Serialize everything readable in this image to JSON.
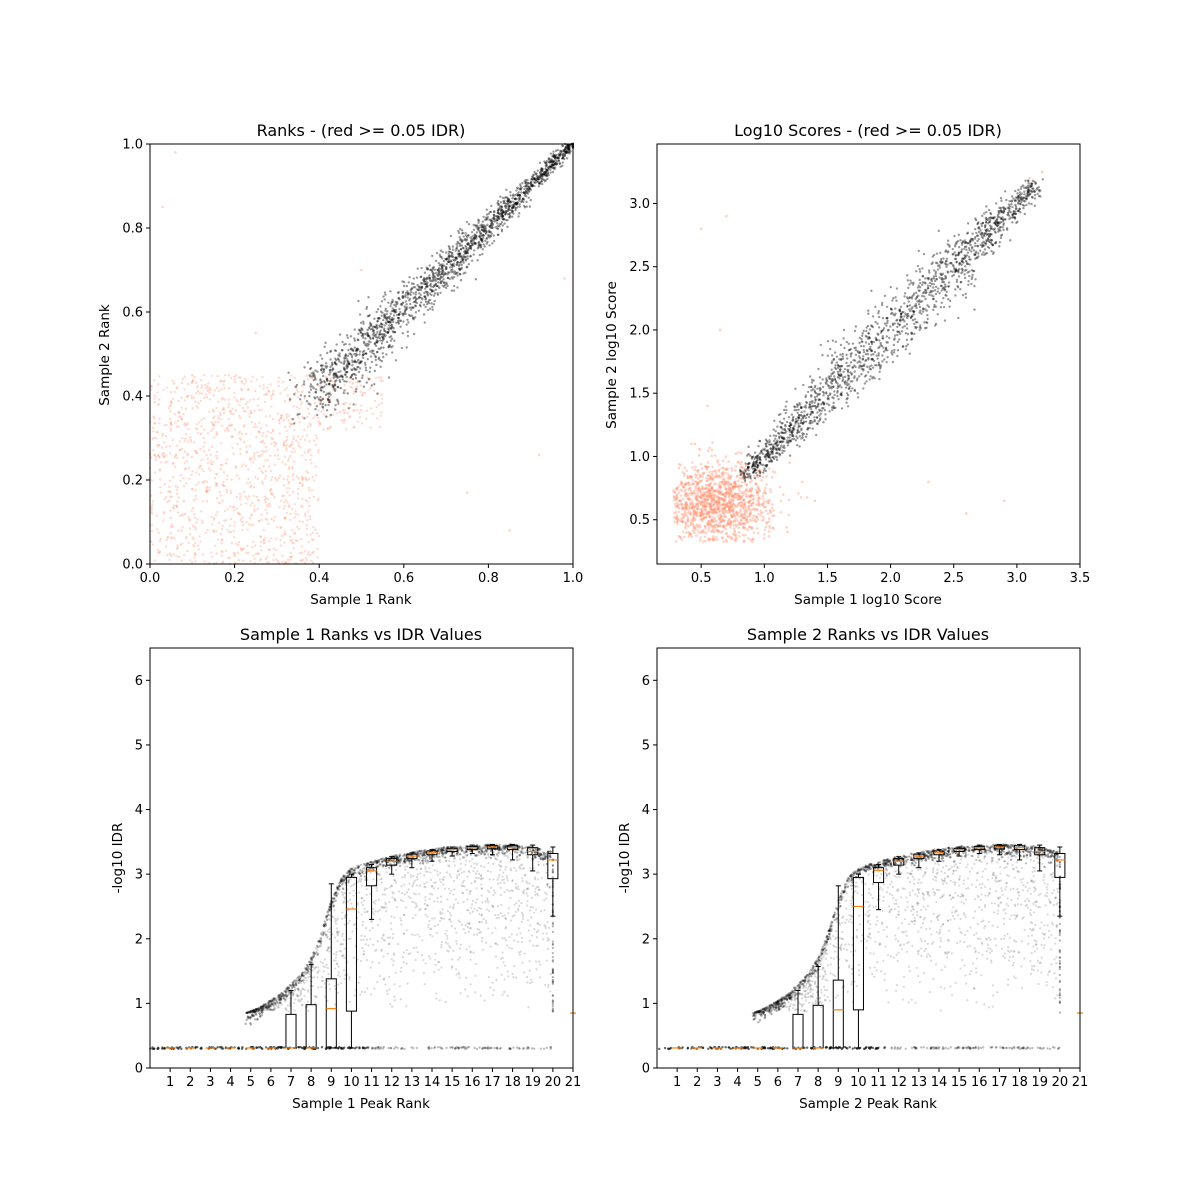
{
  "chart_data": [
    {
      "type": "scatter",
      "title": "Ranks - (red >= 0.05 IDR)",
      "xlabel": "Sample 1 Rank",
      "ylabel": "Sample 2 Rank",
      "xlim": [
        0.0,
        1.0
      ],
      "ylim": [
        0.0,
        1.0
      ],
      "xticks": [
        "0.0",
        "0.2",
        "0.4",
        "0.6",
        "0.8",
        "1.0"
      ],
      "yticks": [
        "0.0",
        "0.2",
        "0.4",
        "0.6",
        "0.8",
        "1.0"
      ],
      "series": [
        {
          "color": "#FF9473",
          "description_of_region": "broad low-rank cloud",
          "points": [
            [
              0.05,
              0.02
            ],
            [
              0.08,
              0.15
            ],
            [
              0.12,
              0.31
            ],
            [
              0.15,
              0.08
            ],
            [
              0.18,
              0.24
            ],
            [
              0.21,
              0.12
            ],
            [
              0.24,
              0.36
            ],
            [
              0.27,
              0.05
            ],
            [
              0.3,
              0.2
            ],
            [
              0.33,
              0.28
            ],
            [
              0.36,
              0.41
            ],
            [
              0.4,
              0.39
            ],
            [
              0.44,
              0.45
            ],
            [
              0.48,
              0.43
            ],
            [
              0.52,
              0.44
            ],
            [
              0.02,
              0.38
            ],
            [
              0.1,
              0.45
            ],
            [
              0.2,
              0.02
            ],
            [
              0.32,
              0.11
            ],
            [
              0.46,
              0.36
            ],
            [
              0.03,
              0.85
            ],
            [
              0.06,
              0.98
            ],
            [
              0.92,
              0.26
            ],
            [
              0.85,
              0.08
            ],
            [
              0.5,
              0.7
            ],
            [
              0.25,
              0.55
            ],
            [
              0.98,
              0.68
            ],
            [
              0.75,
              0.17
            ]
          ]
        },
        {
          "color": "#000000",
          "description_of_region": "diagonal band",
          "points": [
            [
              0.38,
              0.38
            ],
            [
              0.42,
              0.45
            ],
            [
              0.46,
              0.5
            ],
            [
              0.5,
              0.54
            ],
            [
              0.54,
              0.57
            ],
            [
              0.58,
              0.61
            ],
            [
              0.62,
              0.65
            ],
            [
              0.66,
              0.68
            ],
            [
              0.7,
              0.72
            ],
            [
              0.74,
              0.76
            ],
            [
              0.78,
              0.8
            ],
            [
              0.82,
              0.83
            ],
            [
              0.86,
              0.87
            ],
            [
              0.9,
              0.91
            ],
            [
              0.94,
              0.94
            ],
            [
              0.98,
              0.98
            ],
            [
              1.0,
              1.0
            ]
          ]
        }
      ]
    },
    {
      "type": "scatter",
      "title": "Log10 Scores - (red >= 0.05 IDR)",
      "xlabel": "Sample 1 log10 Score",
      "ylabel": "Sample 2 log10 Score",
      "xlim": [
        0.15,
        3.5
      ],
      "ylim": [
        0.15,
        3.47
      ],
      "xticks": [
        "0.5",
        "1.0",
        "1.5",
        "2.0",
        "2.5",
        "3.0",
        "3.5"
      ],
      "yticks": [
        "0.5",
        "1.0",
        "1.5",
        "2.0",
        "2.5",
        "3.0"
      ],
      "series": [
        {
          "color": "#FF9473",
          "description_of_region": "low-score cloud",
          "points": [
            [
              0.3,
              0.6
            ],
            [
              0.4,
              0.45
            ],
            [
              0.5,
              0.7
            ],
            [
              0.6,
              0.55
            ],
            [
              0.7,
              0.9
            ],
            [
              0.8,
              0.4
            ],
            [
              0.9,
              0.75
            ],
            [
              1.0,
              0.6
            ],
            [
              1.1,
              1.05
            ],
            [
              1.2,
              0.95
            ],
            [
              1.3,
              0.8
            ],
            [
              1.4,
              0.65
            ],
            [
              0.45,
              1.1
            ],
            [
              0.55,
              1.4
            ],
            [
              0.65,
              2.0
            ],
            [
              0.5,
              2.8
            ],
            [
              0.7,
              2.9
            ],
            [
              2.3,
              0.8
            ],
            [
              2.6,
              0.55
            ],
            [
              2.9,
              0.65
            ],
            [
              3.1,
              3.2
            ],
            [
              3.2,
              3.25
            ]
          ]
        },
        {
          "color": "#000000",
          "description_of_region": "diagonal band",
          "points": [
            [
              0.85,
              0.86
            ],
            [
              1.0,
              0.98
            ],
            [
              1.2,
              1.2
            ],
            [
              1.4,
              1.38
            ],
            [
              1.6,
              1.6
            ],
            [
              1.8,
              1.8
            ],
            [
              2.0,
              1.98
            ],
            [
              2.2,
              2.2
            ],
            [
              2.4,
              2.4
            ],
            [
              2.6,
              2.6
            ],
            [
              2.8,
              2.78
            ],
            [
              3.0,
              3.0
            ],
            [
              3.1,
              3.1
            ]
          ]
        }
      ]
    },
    {
      "type": "scatter",
      "title": "Sample 1 Ranks vs IDR Values",
      "xlabel": "Sample 1 Peak Rank",
      "ylabel": "-log10 IDR",
      "xlim": [
        0.0,
        21.0
      ],
      "ylim": [
        0.0,
        6.5
      ],
      "xticks": [
        "1",
        "2",
        "3",
        "4",
        "5",
        "6",
        "7",
        "8",
        "9",
        "10",
        "11",
        "12",
        "13",
        "14",
        "15",
        "16",
        "17",
        "18",
        "19",
        "20",
        "21"
      ],
      "yticks": [
        "0",
        "1",
        "2",
        "3",
        "4",
        "5",
        "6"
      ],
      "series": [
        {
          "color": "#000000",
          "description_of_region": "upper envelope",
          "points": [
            [
              4.75,
              0.85
            ],
            [
              5.5,
              0.95
            ],
            [
              6.5,
              1.15
            ],
            [
              7.5,
              1.45
            ],
            [
              8.0,
              1.7
            ],
            [
              8.5,
              2.1
            ],
            [
              9.0,
              2.6
            ],
            [
              9.5,
              2.95
            ],
            [
              10.0,
              3.1
            ],
            [
              11.0,
              3.2
            ],
            [
              12.0,
              3.28
            ],
            [
              13.0,
              3.34
            ],
            [
              14.0,
              3.39
            ],
            [
              15.0,
              3.43
            ],
            [
              16.0,
              3.45
            ],
            [
              17.0,
              3.46
            ],
            [
              18.0,
              3.46
            ],
            [
              19.0,
              3.42
            ],
            [
              19.9,
              3.35
            ]
          ]
        },
        {
          "color": "#000000",
          "description_of_region": "horizontal band",
          "points": [
            [
              0.0,
              0.31
            ],
            [
              5.0,
              0.31
            ],
            [
              10.0,
              0.31
            ],
            [
              11.0,
              0.31
            ],
            [
              15.0,
              0.31
            ],
            [
              20.0,
              0.31
            ]
          ]
        }
      ],
      "boxplots": [
        {
          "x": 7,
          "q1": 0.31,
          "median": 0.31,
          "q3": 0.83,
          "whislo": 0.31,
          "whishi": 1.2
        },
        {
          "x": 8,
          "q1": 0.31,
          "median": 0.31,
          "q3": 0.98,
          "whislo": 0.31,
          "whishi": 1.6
        },
        {
          "x": 9,
          "q1": 0.31,
          "median": 0.92,
          "q3": 1.38,
          "whislo": 0.31,
          "whishi": 2.85
        },
        {
          "x": 10,
          "q1": 0.88,
          "median": 2.46,
          "q3": 2.95,
          "whislo": 0.31,
          "whishi": 3.0
        },
        {
          "x": 11,
          "q1": 2.82,
          "median": 3.05,
          "q3": 3.1,
          "whislo": 2.3,
          "whishi": 3.15
        },
        {
          "x": 12,
          "q1": 3.14,
          "median": 3.2,
          "q3": 3.24,
          "whislo": 3.0,
          "whishi": 3.27
        },
        {
          "x": 13,
          "q1": 3.24,
          "median": 3.28,
          "q3": 3.31,
          "whislo": 3.1,
          "whishi": 3.33
        },
        {
          "x": 14,
          "q1": 3.3,
          "median": 3.33,
          "q3": 3.36,
          "whislo": 3.2,
          "whishi": 3.38
        },
        {
          "x": 15,
          "q1": 3.35,
          "median": 3.38,
          "q3": 3.4,
          "whislo": 3.28,
          "whishi": 3.42
        },
        {
          "x": 16,
          "q1": 3.38,
          "median": 3.41,
          "q3": 3.43,
          "whislo": 3.32,
          "whishi": 3.45
        },
        {
          "x": 17,
          "q1": 3.39,
          "median": 3.42,
          "q3": 3.44,
          "whislo": 3.3,
          "whishi": 3.46
        },
        {
          "x": 18,
          "q1": 3.38,
          "median": 3.41,
          "q3": 3.44,
          "whislo": 3.22,
          "whishi": 3.46
        },
        {
          "x": 19,
          "q1": 3.3,
          "median": 3.35,
          "q3": 3.41,
          "whislo": 3.05,
          "whishi": 3.45
        },
        {
          "x": 20,
          "q1": 2.93,
          "median": 3.22,
          "q3": 3.32,
          "whislo": 2.35,
          "whishi": 3.42
        }
      ],
      "median_color": "#FF7F0E",
      "outlier_marks": [
        [
          21,
          0.85
        ]
      ]
    },
    {
      "type": "scatter",
      "title": "Sample 2 Ranks vs IDR Values",
      "xlabel": "Sample 2 Peak Rank",
      "ylabel": "-log10 IDR",
      "xlim": [
        0.0,
        21.0
      ],
      "ylim": [
        0.0,
        6.5
      ],
      "xticks": [
        "1",
        "2",
        "3",
        "4",
        "5",
        "6",
        "7",
        "8",
        "9",
        "10",
        "11",
        "12",
        "13",
        "14",
        "15",
        "16",
        "17",
        "18",
        "19",
        "20",
        "21"
      ],
      "yticks": [
        "0",
        "1",
        "2",
        "3",
        "4",
        "5",
        "6"
      ],
      "series": [
        {
          "color": "#000000",
          "description_of_region": "upper envelope",
          "points": [
            [
              4.75,
              0.85
            ],
            [
              5.5,
              0.95
            ],
            [
              6.5,
              1.15
            ],
            [
              7.5,
              1.45
            ],
            [
              8.0,
              1.7
            ],
            [
              8.5,
              2.1
            ],
            [
              9.0,
              2.6
            ],
            [
              9.5,
              2.95
            ],
            [
              10.0,
              3.1
            ],
            [
              11.0,
              3.2
            ],
            [
              12.0,
              3.28
            ],
            [
              13.0,
              3.34
            ],
            [
              14.0,
              3.39
            ],
            [
              15.0,
              3.43
            ],
            [
              16.0,
              3.45
            ],
            [
              17.0,
              3.46
            ],
            [
              18.0,
              3.46
            ],
            [
              19.0,
              3.42
            ],
            [
              19.9,
              3.35
            ]
          ]
        },
        {
          "color": "#000000",
          "description_of_region": "horizontal band",
          "points": [
            [
              0.0,
              0.31
            ],
            [
              5.0,
              0.31
            ],
            [
              10.0,
              0.31
            ],
            [
              11.0,
              0.31
            ],
            [
              15.0,
              0.31
            ],
            [
              20.0,
              0.31
            ]
          ]
        }
      ],
      "boxplots": [
        {
          "x": 7,
          "q1": 0.31,
          "median": 0.31,
          "q3": 0.83,
          "whislo": 0.31,
          "whishi": 1.2
        },
        {
          "x": 8,
          "q1": 0.31,
          "median": 0.31,
          "q3": 0.97,
          "whislo": 0.31,
          "whishi": 1.57
        },
        {
          "x": 9,
          "q1": 0.31,
          "median": 0.9,
          "q3": 1.36,
          "whislo": 0.31,
          "whishi": 2.82
        },
        {
          "x": 10,
          "q1": 0.9,
          "median": 2.5,
          "q3": 2.95,
          "whislo": 0.31,
          "whishi": 3.0
        },
        {
          "x": 11,
          "q1": 2.87,
          "median": 3.06,
          "q3": 3.1,
          "whislo": 2.45,
          "whishi": 3.15
        },
        {
          "x": 12,
          "q1": 3.14,
          "median": 3.2,
          "q3": 3.24,
          "whislo": 3.0,
          "whishi": 3.27
        },
        {
          "x": 13,
          "q1": 3.24,
          "median": 3.28,
          "q3": 3.31,
          "whislo": 3.1,
          "whishi": 3.33
        },
        {
          "x": 14,
          "q1": 3.3,
          "median": 3.33,
          "q3": 3.36,
          "whislo": 3.2,
          "whishi": 3.38
        },
        {
          "x": 15,
          "q1": 3.35,
          "median": 3.38,
          "q3": 3.4,
          "whislo": 3.28,
          "whishi": 3.42
        },
        {
          "x": 16,
          "q1": 3.38,
          "median": 3.41,
          "q3": 3.43,
          "whislo": 3.32,
          "whishi": 3.45
        },
        {
          "x": 17,
          "q1": 3.39,
          "median": 3.42,
          "q3": 3.44,
          "whislo": 3.3,
          "whishi": 3.46
        },
        {
          "x": 18,
          "q1": 3.38,
          "median": 3.41,
          "q3": 3.44,
          "whislo": 3.22,
          "whishi": 3.46
        },
        {
          "x": 19,
          "q1": 3.3,
          "median": 3.35,
          "q3": 3.41,
          "whislo": 3.05,
          "whishi": 3.45
        },
        {
          "x": 20,
          "q1": 2.95,
          "median": 3.22,
          "q3": 3.32,
          "whislo": 2.35,
          "whishi": 3.42
        }
      ],
      "median_color": "#FF7F0E",
      "outlier_marks": [
        [
          21,
          0.85
        ]
      ]
    }
  ]
}
